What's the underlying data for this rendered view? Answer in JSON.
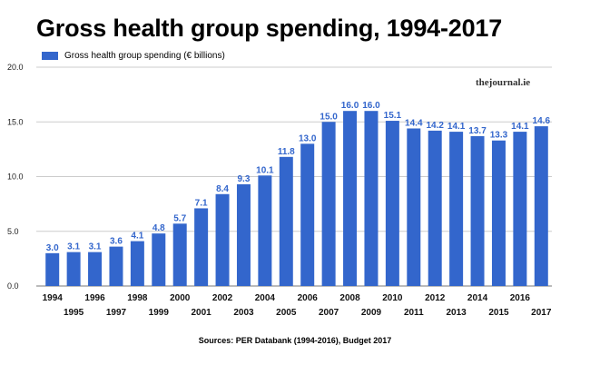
{
  "chart_data": {
    "type": "bar",
    "title": "Gross health group spending, 1994-2017",
    "legend": [
      "Gross health group spending (€ billions)"
    ],
    "legend_position": "top-left",
    "color": "#3366cc",
    "categories": [
      "1994",
      "1995",
      "1996",
      "1997",
      "1998",
      "1999",
      "2000",
      "2001",
      "2002",
      "2003",
      "2004",
      "2005",
      "2006",
      "2007",
      "2008",
      "2009",
      "2010",
      "2011",
      "2012",
      "2013",
      "2014",
      "2015",
      "2016",
      "2017"
    ],
    "values": [
      3.0,
      3.1,
      3.1,
      3.6,
      4.1,
      4.8,
      5.7,
      7.1,
      8.4,
      9.3,
      10.1,
      11.8,
      13.0,
      15.0,
      16.0,
      16.0,
      15.1,
      14.4,
      14.2,
      14.1,
      13.7,
      13.3,
      14.1,
      14.6
    ],
    "data_labels": [
      "3.0",
      "3.1",
      "3.1",
      "3.6",
      "4.1",
      "4.8",
      "5.7",
      "7.1",
      "8.4",
      "9.3",
      "10.1",
      "11.8",
      "13.0",
      "15.0",
      "16.0",
      "16.0",
      "15.1",
      "14.4",
      "14.2",
      "14.1",
      "13.7",
      "13.3",
      "14.1",
      "14.6"
    ],
    "ylim": [
      0,
      20
    ],
    "yticks": [
      "0.0",
      "5.0",
      "10.0",
      "15.0",
      "20.0"
    ],
    "grid": true
  },
  "brand": "thejournal.ie",
  "source": "Sources: PER Databank (1994-2016), Budget 2017"
}
